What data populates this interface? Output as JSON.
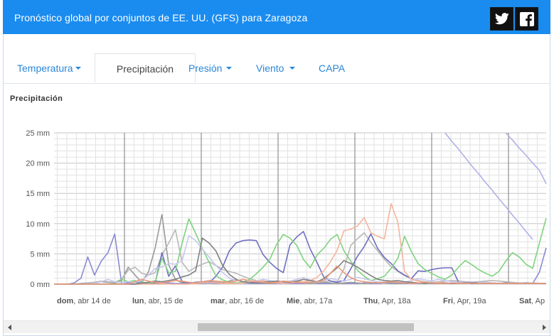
{
  "header": {
    "title": "Pronóstico global por conjuntos de EE. UU. (GFS) para Zaragoza",
    "twitter_icon": "twitter-icon",
    "facebook_icon": "facebook-icon",
    "background": "#1a8cf0"
  },
  "tabs": [
    {
      "label": "Temperatura",
      "dropdown": true,
      "active": false
    },
    {
      "label": "Precipitación",
      "dropdown": false,
      "active": true
    },
    {
      "label": "Presión",
      "dropdown": true,
      "active": false
    },
    {
      "label": "Viento",
      "dropdown": true,
      "active": false
    },
    {
      "label": "CAPA",
      "dropdown": false,
      "active": false
    }
  ],
  "chart_title": "Precipitación",
  "chart_data": {
    "type": "line",
    "title": "Precipitación",
    "yticks": [
      "25 mm",
      "20 mm",
      "15 mm",
      "10 mm",
      "5 mm",
      "0 mm"
    ],
    "ylim": [
      0,
      25
    ],
    "grid": true,
    "day_labels": [
      {
        "bold": "dom",
        "rest": ", abr 14 de"
      },
      {
        "bold": "lun",
        "rest": ", abr, 15 de"
      },
      {
        "bold": "mar",
        "rest": ", abr, 16 de"
      },
      {
        "bold": "Mie",
        "rest": ", abr, 17a"
      },
      {
        "bold": "Thu",
        "rest": ", Apr, 18a"
      },
      {
        "bold": "Fri",
        "rest": ", Apr, 19a"
      },
      {
        "bold": "Sat",
        "rest": ", Ap"
      }
    ],
    "series": [
      {
        "color": "#8a8ad6",
        "values": [
          0,
          0,
          0,
          0.2,
          1,
          4.5,
          1.5,
          3.8,
          5.2,
          8.3,
          0.3,
          0.2,
          0.3,
          0.2,
          0.2,
          0.1,
          0.2,
          0.2,
          0.1,
          0.1,
          0.2,
          0.1,
          0.1,
          0.2,
          0.1,
          0.1,
          0.1,
          0.1,
          0.2,
          0.1,
          0.1,
          0.1,
          0.1,
          0.1,
          0.1,
          0.1,
          0.1,
          0.1,
          0.2,
          0.1,
          0.1,
          0.1,
          0.2,
          0.1,
          0.1,
          0.1,
          0.2,
          0.1,
          0.1,
          0.2,
          0.1,
          0.1,
          0.1,
          0.1,
          0.1,
          0.2,
          0.1,
          0.1,
          0.1,
          0.1,
          0.1,
          0.2,
          0.1,
          0.1,
          0.1,
          0.1,
          0.1,
          0.1,
          0.1,
          0.2,
          0.1,
          0.1,
          2,
          6
        ]
      },
      {
        "color": "#9a9a9a",
        "values": [
          0,
          0,
          0,
          0,
          0.1,
          0.2,
          0.3,
          0.4,
          0.3,
          0.2,
          0.6,
          2.8,
          1.5,
          0.3,
          2,
          6,
          11.5,
          3.2,
          0.8,
          0.2,
          0.3,
          0.1,
          0.2,
          0.4,
          0.3,
          0.2,
          0.5,
          0.8,
          0.4,
          0.2,
          0.3,
          0.2,
          0.1,
          0.2,
          0.3,
          0.2,
          0.3,
          0.2,
          0.1,
          0.2,
          0.3,
          0.2,
          0.1,
          0.2,
          0.3,
          0.2,
          0.1,
          0.2,
          0.3,
          0.2,
          0.2,
          0.1,
          0.2,
          0.3,
          0.2,
          0.1,
          0.2,
          0.3,
          0.2,
          0.1,
          0.2,
          0.2,
          0.1,
          0.2,
          0.3,
          0.2,
          0.1,
          0.2,
          0.2,
          0.1,
          0.2,
          0.2,
          0.1,
          0.1
        ]
      },
      {
        "color": "#b8b8b8",
        "values": [
          0,
          0,
          0,
          0,
          0,
          0.2,
          0.3,
          0.5,
          0.4,
          0.3,
          0.8,
          2.3,
          2.8,
          1.8,
          1.5,
          1.9,
          4.8,
          6.8,
          9,
          3.6,
          2.1,
          2.8,
          3.3,
          3.7,
          3.1,
          2.4,
          2.1,
          1.8,
          1.3,
          0.9,
          0.6,
          0.4,
          0.5,
          0.4,
          0.3,
          0.4,
          0.5,
          0.4,
          0.3,
          0.3,
          0.4,
          0.5,
          0.4,
          2.5,
          6.4,
          7.5,
          8.5,
          6.9,
          5.5,
          4.1,
          2.9,
          2.1,
          1.4,
          0.9,
          0.6,
          0.4,
          0.3,
          0.4,
          0.5,
          0.6,
          0.5,
          0.4,
          0.3,
          0.4,
          0.5,
          0.6,
          0.5,
          0.4,
          0.3,
          0.2,
          0.1,
          0.1,
          0.1,
          0.1
        ]
      },
      {
        "color": "#6f6fbf",
        "values": [
          0,
          0,
          0,
          0,
          0,
          0,
          0,
          0,
          0,
          0,
          0,
          0,
          0,
          0,
          0.1,
          0.2,
          5.2,
          1.3,
          3,
          0.4,
          0.2,
          0.3,
          0.4,
          0.2,
          1.3,
          2.8,
          5.5,
          6.8,
          7.2,
          7.3,
          7.2,
          4.9,
          3.6,
          2.6,
          1.9,
          6.5,
          7.8,
          8.7,
          5.8,
          3.6,
          1.2,
          0.5,
          0.3,
          0.6,
          2.5,
          4.6,
          6.2,
          8.3,
          5.9,
          4.4,
          3.4,
          2.2,
          1.5,
          0.9,
          2.2,
          2.1,
          2.4,
          2.6,
          2.7,
          2.7,
          0.3,
          0.2,
          0.3,
          0.2,
          0.2,
          0.2,
          0.1,
          0.2,
          0.1,
          0.1,
          0.2,
          0.1,
          0.1,
          0.1
        ]
      },
      {
        "color": "#7fd37f",
        "values": [
          0,
          0,
          0,
          0,
          0,
          0,
          0,
          0,
          0,
          0,
          0.8,
          0.4,
          0.6,
          0.3,
          0.2,
          0.3,
          4.3,
          1.9,
          2.1,
          6.8,
          10.8,
          8.4,
          5.9,
          3.6,
          1.4,
          0.7,
          0.3,
          0.2,
          0.3,
          0.8,
          1.7,
          2.8,
          4.1,
          6.5,
          8.2,
          7.6,
          6.4,
          4.1,
          2.7,
          4.8,
          5.9,
          7.4,
          8.2,
          5.5,
          3.8,
          2.3,
          1.3,
          0.6,
          0.9,
          1.3,
          2.6,
          4.3,
          7.9,
          5.4,
          3.4,
          2.4,
          1.8,
          1.2,
          0.8,
          1.5,
          2.8,
          3.9,
          3.2,
          2.4,
          1.8,
          1.3,
          2.1,
          3.8,
          5.2,
          4.5,
          3.3,
          2.6,
          6.8,
          10.9
        ]
      },
      {
        "color": "#c8c8ee",
        "values": [
          0,
          0,
          0,
          0,
          0,
          0,
          0.1,
          0.4,
          0.8,
          0.4,
          0.2,
          0.4,
          0.3,
          0.6,
          1.5,
          2.6,
          2.8,
          3.4,
          3.3,
          3.9,
          8,
          7.2,
          5.8,
          4.5,
          3.1,
          1.9,
          1,
          0.6,
          0.4,
          0.3,
          0.5,
          0.8,
          0.6,
          0.4,
          0.3,
          0.5,
          0.8,
          1.1,
          0.7,
          0.4,
          0.6,
          0.9,
          0.7,
          0.5,
          0.8,
          1.1,
          0.9,
          0.6,
          0.4,
          0.3,
          0.5,
          0.4,
          0.3,
          0.6,
          0.9,
          0.7,
          0.5,
          0.8,
          0.6,
          0.4,
          0.3,
          0.2,
          0.1,
          0.2,
          0.3,
          0.2,
          0.1,
          0.1,
          0.2,
          0.1,
          0.1,
          0.2,
          0.1,
          0.1
        ]
      },
      {
        "color": "#f5b59c",
        "values": [
          0,
          0,
          0,
          0,
          0,
          0,
          0,
          0,
          0,
          0,
          0,
          0,
          0,
          0,
          0,
          0,
          0,
          0,
          0,
          0,
          0,
          0.1,
          0.2,
          0.3,
          0.2,
          0.1,
          0.1,
          0.1,
          0.2,
          0.3,
          0.4,
          0.6,
          0.3,
          0.2,
          0.1,
          0.2,
          0.3,
          0.4,
          0.6,
          1.1,
          2.2,
          3.7,
          5.6,
          8.8,
          9.1,
          9.6,
          11,
          8.5,
          7.9,
          7.5,
          13.3,
          10.2,
          2.1,
          0.8,
          0.5,
          0.3,
          0.2,
          0.3,
          0.2,
          0.1,
          0.2,
          0.1,
          0.2,
          0.1,
          0.1,
          0.2,
          0.1,
          0.1,
          0.2,
          0.1,
          0.1,
          0.2,
          0.1,
          0.1
        ]
      },
      {
        "color": "#808080",
        "values": [
          0,
          0,
          0,
          0,
          0,
          0,
          0,
          0,
          0,
          0,
          0,
          0,
          0,
          0.2,
          0.3,
          0.5,
          0.4,
          0.6,
          0.8,
          1.2,
          1.5,
          2.2,
          7.6,
          6.8,
          5.5,
          3.1,
          1.6,
          0.8,
          0.4,
          0.3,
          0.2,
          0.3,
          0.4,
          0.5,
          0.4,
          0.3,
          0.5,
          0.8,
          0.6,
          0.4,
          0.9,
          1.8,
          2.7,
          3.9,
          3.4,
          2.8,
          2.1,
          1.4,
          0.8,
          0.6,
          0.5,
          0.6,
          0.4,
          0.3,
          0.2,
          0.1,
          0.2,
          0.1,
          0.2,
          0.1,
          0.1,
          0.2,
          0.1,
          0.1,
          0.1,
          0.1,
          0.1,
          0.1,
          0.1,
          0.1,
          0.1,
          0.1,
          0.1,
          0.1
        ]
      },
      {
        "color": "#e99a7c",
        "values": [
          0,
          0,
          0,
          0,
          0,
          0,
          0,
          0,
          0,
          0,
          0,
          0,
          0.4,
          0.8,
          0.5,
          0.3,
          0.2,
          0.4,
          0.6,
          0.5,
          0.3,
          0.2,
          0.4,
          0.6,
          0.5,
          0.4,
          0.3,
          0.5,
          0.8,
          0.6,
          0.4,
          0.3,
          0.2,
          0.3,
          0.5,
          0.4,
          0.3,
          0.2,
          0.3,
          0.4,
          0.6,
          1.8,
          3,
          1.9,
          1.1,
          0.6,
          0.4,
          0.3,
          0.2,
          0.3,
          0.4,
          0.3,
          0.2,
          0.1,
          0.2,
          0.3,
          0.2,
          0.1,
          0.1,
          0.2,
          0.1,
          0.1,
          0.2,
          0.1,
          0.1,
          0.1,
          0.1,
          0.1,
          0.1,
          0.1,
          0.1,
          0.1,
          0.1,
          0.1
        ]
      },
      {
        "color": "#b0b0e8",
        "values": [
          null,
          null,
          null,
          null,
          null,
          null,
          null,
          null,
          null,
          null,
          null,
          null,
          null,
          null,
          null,
          null,
          null,
          null,
          null,
          null,
          null,
          null,
          null,
          null,
          null,
          null,
          null,
          null,
          null,
          null,
          null,
          null,
          null,
          null,
          null,
          null,
          null,
          null,
          null,
          null,
          null,
          null,
          null,
          null,
          null,
          null,
          null,
          null,
          null,
          null,
          null,
          null,
          null,
          null,
          null,
          null,
          null,
          null,
          25,
          23.6,
          22.3,
          20.9,
          19.5,
          18.2,
          16.8,
          15.5,
          14.1,
          12.8,
          11.4,
          10.1,
          8.7,
          7.4,
          null,
          null
        ]
      },
      {
        "color": "#b0b0e8",
        "values": [
          null,
          null,
          null,
          null,
          null,
          null,
          null,
          null,
          null,
          null,
          null,
          null,
          null,
          null,
          null,
          null,
          null,
          null,
          null,
          null,
          null,
          null,
          null,
          null,
          null,
          null,
          null,
          null,
          null,
          null,
          null,
          null,
          null,
          null,
          null,
          null,
          null,
          null,
          null,
          null,
          null,
          null,
          null,
          null,
          null,
          null,
          null,
          null,
          null,
          null,
          null,
          null,
          null,
          null,
          null,
          null,
          null,
          null,
          null,
          null,
          null,
          null,
          null,
          null,
          null,
          null,
          null,
          25,
          23.8,
          22.5,
          21.3,
          20,
          18.8,
          16.6
        ]
      }
    ]
  },
  "scrollbar": {
    "left_arrow": "left-arrow-icon",
    "right_arrow": "right-arrow-icon"
  }
}
